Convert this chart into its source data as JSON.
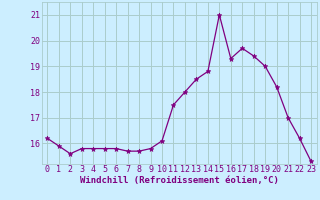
{
  "x": [
    0,
    1,
    2,
    3,
    4,
    5,
    6,
    7,
    8,
    9,
    10,
    11,
    12,
    13,
    14,
    15,
    16,
    17,
    18,
    19,
    20,
    21,
    22,
    23
  ],
  "y": [
    16.2,
    15.9,
    15.6,
    15.8,
    15.8,
    15.8,
    15.8,
    15.7,
    15.7,
    15.8,
    16.1,
    17.5,
    18.0,
    18.5,
    18.8,
    21.0,
    19.3,
    19.7,
    19.4,
    19.0,
    18.2,
    17.0,
    16.2,
    15.3
  ],
  "line_color": "#800080",
  "marker": "*",
  "marker_size": 3.5,
  "bg_color": "#cceeff",
  "grid_color": "#aacccc",
  "xlabel": "Windchill (Refroidissement éolien,°C)",
  "xlabel_fontsize": 6.5,
  "tick_fontsize": 6.0,
  "ylabel_ticks": [
    16,
    17,
    18,
    19,
    20,
    21
  ],
  "xlim": [
    -0.5,
    23.5
  ],
  "ylim": [
    15.2,
    21.5
  ]
}
